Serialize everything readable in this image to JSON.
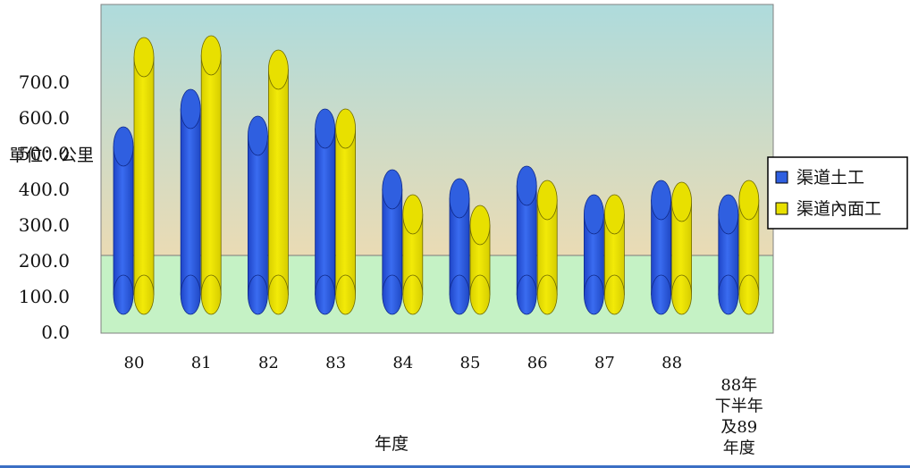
{
  "chart_data": {
    "type": "bar",
    "title": "",
    "xlabel": "年度",
    "ylabel": "單位：公里",
    "categories": [
      "80",
      "81",
      "82",
      "83",
      "84",
      "85",
      "86",
      "87",
      "88",
      "88年下半年及89年度"
    ],
    "category_lines": [
      [
        "80"
      ],
      [
        "81"
      ],
      [
        "82"
      ],
      [
        "83"
      ],
      [
        "84"
      ],
      [
        "85"
      ],
      [
        "86"
      ],
      [
        "87"
      ],
      [
        "88"
      ],
      [
        "88年",
        "下半年",
        "及89",
        "年度"
      ]
    ],
    "yticks": [
      "0.0",
      "100.0",
      "200.0",
      "300.0",
      "400.0",
      "500.0",
      "600.0",
      "700.0"
    ],
    "ylim": [
      0,
      700
    ],
    "series": [
      {
        "name": "渠道土工",
        "color": "#2f5fe0",
        "values": [
          415,
          520,
          445,
          465,
          295,
          270,
          305,
          225,
          265,
          225
        ]
      },
      {
        "name": "渠道內面工",
        "color": "#e8e000",
        "values": [
          665,
          670,
          630,
          465,
          225,
          195,
          265,
          225,
          260,
          265
        ]
      }
    ],
    "legend_position": "right",
    "grid": false
  }
}
